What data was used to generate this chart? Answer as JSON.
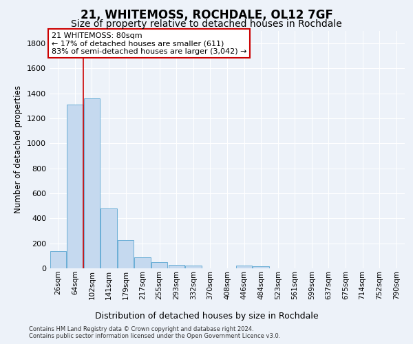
{
  "title": "21, WHITEMOSS, ROCHDALE, OL12 7GF",
  "subtitle": "Size of property relative to detached houses in Rochdale",
  "xlabel": "Distribution of detached houses by size in Rochdale",
  "ylabel": "Number of detached properties",
  "categories": [
    "26sqm",
    "64sqm",
    "102sqm",
    "141sqm",
    "179sqm",
    "217sqm",
    "255sqm",
    "293sqm",
    "332sqm",
    "370sqm",
    "408sqm",
    "446sqm",
    "484sqm",
    "523sqm",
    "561sqm",
    "599sqm",
    "637sqm",
    "675sqm",
    "714sqm",
    "752sqm",
    "790sqm"
  ],
  "values": [
    135,
    1310,
    1360,
    480,
    228,
    90,
    48,
    28,
    20,
    0,
    0,
    20,
    18,
    0,
    0,
    0,
    0,
    0,
    0,
    0,
    0
  ],
  "bar_color": "#c5d9ef",
  "bar_edge_color": "#6aaed6",
  "vline_x": 1.5,
  "annotation_line1": "21 WHITEMOSS: 80sqm",
  "annotation_line2": "← 17% of detached houses are smaller (611)",
  "annotation_line3": "83% of semi-detached houses are larger (3,042) →",
  "annotation_box_color": "#ffffff",
  "annotation_box_edge_color": "#cc0000",
  "vline_color": "#cc0000",
  "ylim": [
    0,
    1900
  ],
  "yticks": [
    0,
    200,
    400,
    600,
    800,
    1000,
    1200,
    1400,
    1600,
    1800
  ],
  "footer1": "Contains HM Land Registry data © Crown copyright and database right 2024.",
  "footer2": "Contains public sector information licensed under the Open Government Licence v3.0.",
  "background_color": "#edf2f9",
  "grid_color": "#ffffff",
  "title_fontsize": 12,
  "subtitle_fontsize": 10,
  "tick_fontsize": 7.5,
  "ylabel_fontsize": 8.5,
  "xlabel_fontsize": 9,
  "annotation_fontsize": 8,
  "footer_fontsize": 6
}
